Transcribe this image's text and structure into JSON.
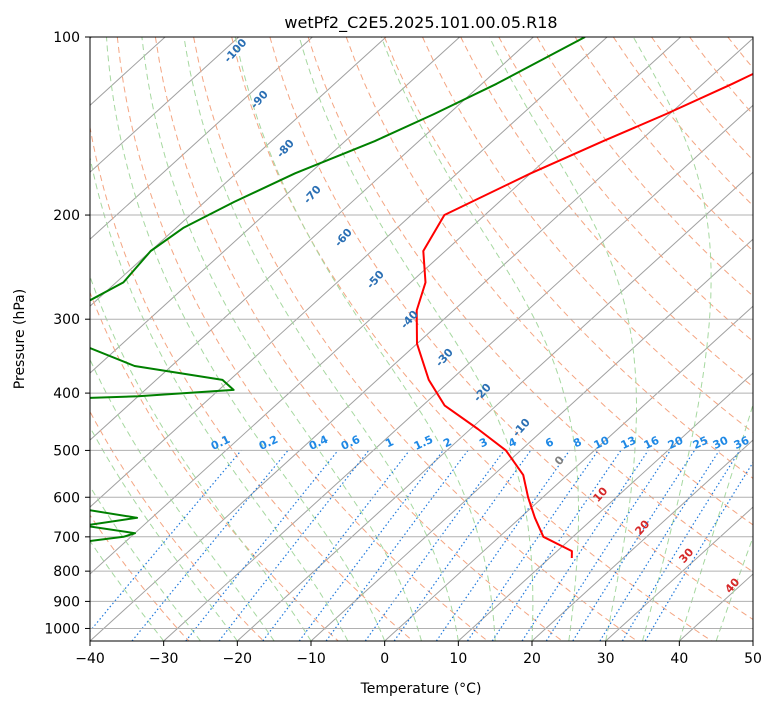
{
  "chart_data": {
    "type": "line",
    "title": "wetPf2_C2E5.2025.101.00.05.R18",
    "xlabel": "Temperature (°C)",
    "ylabel": "Pressure (hPa)",
    "xlim": [
      -40,
      50
    ],
    "ylim": [
      1050,
      100
    ],
    "y_scale": "log",
    "skew": true,
    "grid": true,
    "x_ticks": [
      -40,
      -30,
      -20,
      -10,
      0,
      10,
      20,
      30,
      40,
      50
    ],
    "y_ticks": [
      100,
      200,
      300,
      400,
      500,
      600,
      700,
      800,
      900,
      1000
    ],
    "series": [
      {
        "color": "#ff0000",
        "points": [
          [
            -29.5,
            100
          ],
          [
            -33,
            110
          ],
          [
            -36,
            120
          ],
          [
            -40.5,
            135
          ],
          [
            -45,
            150
          ],
          [
            -50,
            170
          ],
          [
            -55.5,
            200
          ],
          [
            -53,
            230
          ],
          [
            -48,
            260
          ],
          [
            -45,
            290
          ],
          [
            -40,
            330
          ],
          [
            -33,
            380
          ],
          [
            -27,
            420
          ],
          [
            -19,
            460
          ],
          [
            -12,
            500
          ],
          [
            -6,
            550
          ],
          [
            -2,
            600
          ],
          [
            2,
            650
          ],
          [
            6,
            700
          ],
          [
            12,
            740
          ],
          [
            13,
            760
          ]
        ],
        "color_name": "red"
      },
      {
        "color": "#008000",
        "points": [
          [
            -63,
            100
          ],
          [
            -68,
            120
          ],
          [
            -72,
            135
          ],
          [
            -76,
            150
          ],
          [
            -82,
            170
          ],
          [
            -86,
            190
          ],
          [
            -89,
            210
          ],
          [
            -90,
            230
          ],
          [
            -89,
            260
          ],
          [
            -91,
            280
          ],
          [
            -99,
            300
          ],
          [
            -89,
            320
          ],
          [
            -84,
            335
          ],
          [
            -75,
            360
          ],
          [
            -61,
            380
          ],
          [
            -58,
            395
          ],
          [
            -70,
            405
          ],
          [
            -130,
            430
          ],
          [
            -110,
            440
          ],
          [
            -103,
            460
          ],
          [
            -99,
            480
          ],
          [
            -99,
            500
          ],
          [
            -95,
            520
          ],
          [
            -88,
            540
          ],
          [
            -80,
            560
          ],
          [
            -84,
            580
          ],
          [
            -80,
            600
          ],
          [
            -64,
            620
          ],
          [
            -52,
            650
          ],
          [
            -58,
            670
          ],
          [
            -50,
            690
          ],
          [
            -51,
            700
          ],
          [
            -61,
            730
          ],
          [
            -71,
            750
          ]
        ],
        "color_name": "green"
      }
    ],
    "dry_adiabat_labels": [
      "-100",
      "-90",
      "-80",
      "-70",
      "-60",
      "-50",
      "-40",
      "-30",
      "-20",
      "-10",
      "0",
      "10",
      "20",
      "30",
      "40"
    ],
    "mixing_ratio_labels": [
      "0.1",
      "0.2",
      "0.4",
      "0.6",
      "1",
      "1.5",
      "2",
      "3",
      "4",
      "6",
      "8",
      "10",
      "13",
      "16",
      "20",
      "25",
      "30",
      "36"
    ],
    "mixing_ratio_values": [
      0.1,
      0.2,
      0.4,
      0.6,
      1,
      1.5,
      2,
      3,
      4,
      6,
      8,
      10,
      13,
      16,
      20,
      25,
      30,
      36
    ],
    "colors": {
      "temperature": "#ff0000",
      "dewpoint": "#008000",
      "isotherm": "#a0a0a0",
      "dry_adiabat": "#f4a582",
      "moist_adiabat": "#a6d8a0",
      "mixing_ratio": "#1e78dc",
      "grid": "#b0b0b0",
      "dry_label_cold": "#2a6fb4",
      "dry_label_warm": "#d62728",
      "dry_label_zero": "#808080",
      "mixing_label": "#1e88e5"
    }
  }
}
